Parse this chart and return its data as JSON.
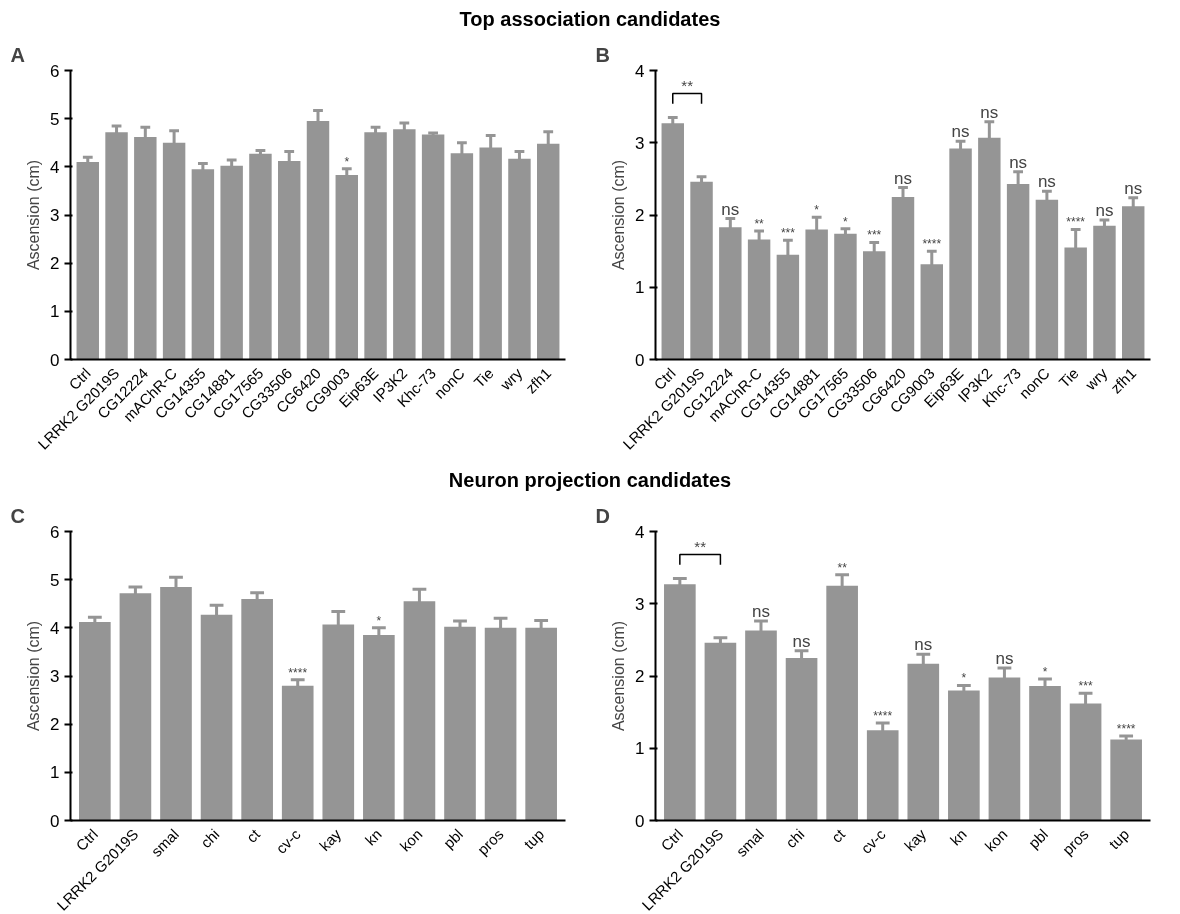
{
  "chart_data": [
    {
      "type": "bar",
      "title": "Top association candidates",
      "subtitle": "A",
      "ylabel": "Ascension (cm)",
      "color": "#959595",
      "categories": [
        "Ctrl",
        "LRRK2 G2019S",
        "CG12224",
        "mAChR-C",
        "CG14355",
        "CG14881",
        "CG17565",
        "CG33506",
        "CG6420",
        "CG9003",
        "Eip63E",
        "IP3K2",
        "Khc-73",
        "nonC",
        "Tie",
        "wry",
        "zfh1"
      ],
      "values": [
        4.1,
        4.72,
        4.62,
        4.5,
        3.95,
        4.02,
        4.27,
        4.12,
        4.95,
        3.83,
        4.72,
        4.78,
        4.67,
        4.28,
        4.4,
        4.17,
        4.48
      ],
      "errors": [
        0.1,
        0.13,
        0.2,
        0.25,
        0.12,
        0.12,
        0.07,
        0.2,
        0.22,
        0.13,
        0.1,
        0.13,
        0.03,
        0.22,
        0.25,
        0.15,
        0.25
      ],
      "ylim": [
        0,
        6
      ],
      "yticks": [
        0,
        1,
        2,
        3,
        4,
        5,
        6
      ],
      "grid": false,
      "annotations": [
        {
          "text": "*",
          "x": "CG9003",
          "y": 3.96
        }
      ]
    },
    {
      "type": "bar",
      "subtitle": "B",
      "ylabel": "Ascension (cm)",
      "color": "#959595",
      "categories": [
        "Ctrl",
        "LRRK2 G2019S",
        "CG12224",
        "mAChR-C",
        "CG14355",
        "CG14881",
        "CG17565",
        "CG33506",
        "CG6420",
        "CG9003",
        "Eip63E",
        "IP3K2",
        "Khc-73",
        "nonC",
        "Tie",
        "wry",
        "zfh1"
      ],
      "values": [
        3.27,
        2.46,
        1.83,
        1.66,
        1.45,
        1.8,
        1.74,
        1.5,
        2.25,
        1.32,
        2.92,
        3.07,
        2.43,
        2.21,
        1.55,
        1.85,
        2.12
      ],
      "errors": [
        0.08,
        0.07,
        0.12,
        0.12,
        0.2,
        0.17,
        0.07,
        0.12,
        0.13,
        0.18,
        0.1,
        0.22,
        0.17,
        0.12,
        0.25,
        0.08,
        0.12
      ],
      "ylim": [
        0,
        4
      ],
      "yticks": [
        0,
        1,
        2,
        3,
        4
      ],
      "grid": false,
      "annotations": [
        "**",
        {
          "text": "ns",
          "x": "CG12224",
          "y": 1.95
        },
        {
          "text": "**",
          "x": "mAChR-C",
          "y": 1.78
        },
        {
          "text": "***",
          "x": "CG14355",
          "y": 1.65
        },
        {
          "text": "*",
          "x": "CG14881",
          "y": 1.97
        },
        {
          "text": "*",
          "x": "CG17565",
          "y": 1.81
        },
        {
          "text": "***",
          "x": "CG33506",
          "y": 1.62
        },
        {
          "text": "ns",
          "x": "CG6420",
          "y": 2.38
        },
        {
          "text": "****",
          "x": "CG9003",
          "y": 1.5
        },
        {
          "text": "ns",
          "x": "Eip63E",
          "y": 3.02
        },
        {
          "text": "ns",
          "x": "IP3K2",
          "y": 3.29
        },
        {
          "text": "ns",
          "x": "Khc-73",
          "y": 2.6
        },
        {
          "text": "ns",
          "x": "nonC",
          "y": 2.33
        },
        {
          "text": "****",
          "x": "Tie",
          "y": 1.8
        },
        {
          "text": "ns",
          "x": "wry",
          "y": 1.93
        },
        {
          "text": "ns",
          "x": "zfh1",
          "y": 2.24
        }
      ]
    },
    {
      "type": "bar",
      "title": "Neuron projection candidates",
      "subtitle": "C",
      "ylabel": "Ascension (cm)",
      "color": "#959595",
      "categories": [
        "Ctrl",
        "LRRK2 G2019S",
        "smal",
        "chi",
        "ct",
        "cv-c",
        "kay",
        "kn",
        "kon",
        "pbl",
        "pros",
        "tup"
      ],
      "values": [
        4.12,
        4.72,
        4.85,
        4.27,
        4.6,
        2.8,
        4.07,
        3.85,
        4.55,
        4.02,
        4.0,
        4.0
      ],
      "errors": [
        0.1,
        0.13,
        0.2,
        0.2,
        0.13,
        0.12,
        0.27,
        0.15,
        0.25,
        0.12,
        0.2,
        0.15
      ],
      "ylim": [
        0,
        6
      ],
      "yticks": [
        0,
        1,
        2,
        3,
        4,
        5,
        6
      ],
      "grid": false,
      "annotations": [
        {
          "text": "****",
          "x": "cv-c",
          "y": 2.92
        },
        {
          "text": "*",
          "x": "kn",
          "y": 4.0
        }
      ]
    },
    {
      "type": "bar",
      "subtitle": "D",
      "ylabel": "Ascension (cm)",
      "color": "#959595",
      "categories": [
        "Ctrl",
        "LRRK2 G2019S",
        "smal",
        "chi",
        "ct",
        "cv-c",
        "kay",
        "kn",
        "kon",
        "pbl",
        "pros",
        "tup"
      ],
      "values": [
        3.27,
        2.46,
        2.63,
        2.25,
        3.25,
        1.25,
        2.17,
        1.8,
        1.98,
        1.86,
        1.62,
        1.12
      ],
      "errors": [
        0.08,
        0.07,
        0.13,
        0.1,
        0.15,
        0.1,
        0.13,
        0.07,
        0.13,
        0.1,
        0.14,
        0.05
      ],
      "ylim": [
        0,
        4
      ],
      "yticks": [
        0,
        1,
        2,
        3,
        4
      ],
      "grid": false,
      "annotations": [
        "**",
        {
          "text": "ns",
          "x": "smal",
          "y": 2.76
        },
        {
          "text": "ns",
          "x": "chi",
          "y": 2.35
        },
        {
          "text": "**",
          "x": "ct",
          "y": 3.4
        },
        {
          "text": "****",
          "x": "cv-c",
          "y": 1.35
        },
        {
          "text": "ns",
          "x": "kay",
          "y": 2.3
        },
        {
          "text": "*",
          "x": "kn",
          "y": 1.87
        },
        {
          "text": "ns",
          "x": "kon",
          "y": 2.11
        },
        {
          "text": "*",
          "x": "pbl",
          "y": 1.96
        },
        {
          "text": "***",
          "x": "pros",
          "y": 1.76
        },
        {
          "text": "****",
          "x": "tup",
          "y": 1.17
        }
      ]
    }
  ]
}
